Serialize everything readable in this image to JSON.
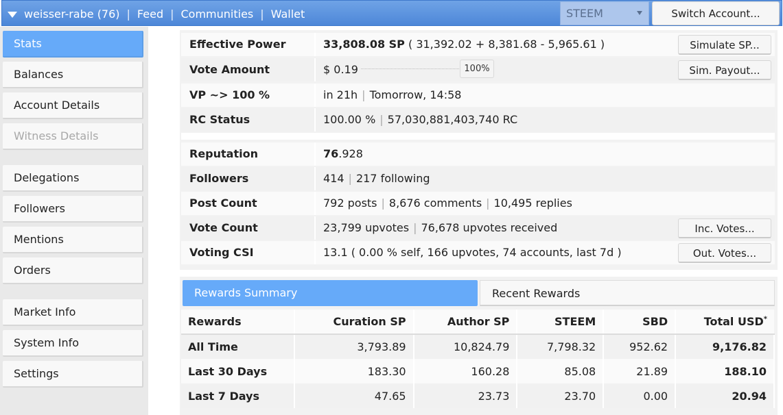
{
  "header": {
    "account": "weisser-rabe (76)",
    "links": [
      "Feed",
      "Communities",
      "Wallet"
    ],
    "separator": "|",
    "chain": "STEEM",
    "switch_label": "Switch Account..."
  },
  "sidebar": {
    "items": [
      {
        "label": "Stats",
        "state": "active"
      },
      {
        "label": "Balances",
        "state": "normal"
      },
      {
        "label": "Account Details",
        "state": "normal"
      },
      {
        "label": "Witness Details",
        "state": "disabled"
      },
      {
        "label": "Delegations",
        "state": "normal"
      },
      {
        "label": "Followers",
        "state": "normal"
      },
      {
        "label": "Mentions",
        "state": "normal"
      },
      {
        "label": "Orders",
        "state": "normal"
      },
      {
        "label": "Market Info",
        "state": "normal"
      },
      {
        "label": "System Info",
        "state": "normal"
      },
      {
        "label": "Settings",
        "state": "normal"
      }
    ]
  },
  "stats": {
    "effective_power": {
      "label": "Effective Power",
      "value_bold": "33,808.08 SP",
      "value_rest": " ( 31,392.02 + 8,381.68 - 5,965.61 )",
      "button": "Simulate SP..."
    },
    "vote_amount": {
      "label": "Vote Amount",
      "value": "$ 0.19",
      "slider_percent": "100%",
      "slider_fraction": 1.0,
      "button": "Sim. Payout..."
    },
    "vp": {
      "label": "VP ~> 100 %",
      "value_a": "in 21h",
      "value_b": "Tomorrow, 14:58"
    },
    "rc": {
      "label": "RC Status",
      "value_a": "100.00 %",
      "value_b": "57,030,881,403,740 RC"
    },
    "reputation": {
      "label": "Reputation",
      "value_bold": "76",
      "value_rest": ".928"
    },
    "followers": {
      "label": "Followers",
      "value_a": "414",
      "value_b": "217 following"
    },
    "post_count": {
      "label": "Post Count",
      "value_a": "792 posts",
      "value_b": "8,676 comments",
      "value_c": "10,495 replies"
    },
    "vote_count": {
      "label": "Vote Count",
      "value_a": "23,799 upvotes",
      "value_b": "76,678 upvotes received",
      "button": "Inc. Votes..."
    },
    "voting_csi": {
      "label": "Voting CSI",
      "value": "13.1 ( 0.00 % self, 166 upvotes, 74 accounts, last 7d )",
      "button": "Out. Votes..."
    },
    "pipe": "|"
  },
  "rewards": {
    "tabs": [
      {
        "label": "Rewards Summary",
        "active": true
      },
      {
        "label": "Recent Rewards",
        "active": false
      }
    ],
    "columns": [
      "Rewards",
      "Curation SP",
      "Author SP",
      "STEEM",
      "SBD",
      "Total USD"
    ],
    "total_footnote": "*",
    "rows": [
      {
        "label": "All Time",
        "values": [
          "3,793.89",
          "10,824.79",
          "7,798.32",
          "952.62",
          "9,176.82"
        ]
      },
      {
        "label": "Last 30 Days",
        "values": [
          "183.30",
          "160.28",
          "85.08",
          "21.89",
          "188.10"
        ]
      },
      {
        "label": "Last 7 Days",
        "values": [
          "47.65",
          "23.73",
          "23.70",
          "0.00",
          "20.94"
        ]
      }
    ]
  }
}
